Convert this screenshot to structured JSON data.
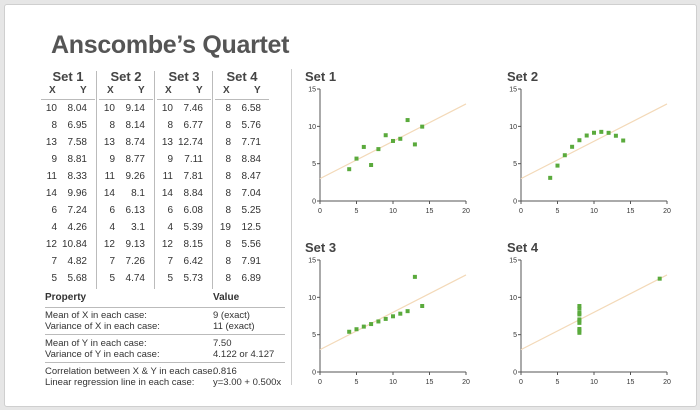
{
  "title": "Anscombe’s Quartet",
  "sets": [
    {
      "name": "Set 1",
      "xh": "X",
      "yh": "Y",
      "rows": [
        [
          "10",
          "8.04"
        ],
        [
          "8",
          "6.95"
        ],
        [
          "13",
          "7.58"
        ],
        [
          "9",
          "8.81"
        ],
        [
          "11",
          "8.33"
        ],
        [
          "14",
          "9.96"
        ],
        [
          "6",
          "7.24"
        ],
        [
          "4",
          "4.26"
        ],
        [
          "12",
          "10.84"
        ],
        [
          "7",
          "4.82"
        ],
        [
          "5",
          "5.68"
        ]
      ]
    },
    {
      "name": "Set 2",
      "xh": "X",
      "yh": "Y",
      "rows": [
        [
          "10",
          "9.14"
        ],
        [
          "8",
          "8.14"
        ],
        [
          "13",
          "8.74"
        ],
        [
          "9",
          "8.77"
        ],
        [
          "11",
          "9.26"
        ],
        [
          "14",
          "8.1"
        ],
        [
          "6",
          "6.13"
        ],
        [
          "4",
          "3.1"
        ],
        [
          "12",
          "9.13"
        ],
        [
          "7",
          "7.26"
        ],
        [
          "5",
          "4.74"
        ]
      ]
    },
    {
      "name": "Set 3",
      "xh": "X",
      "yh": "Y",
      "rows": [
        [
          "10",
          "7.46"
        ],
        [
          "8",
          "6.77"
        ],
        [
          "13",
          "12.74"
        ],
        [
          "9",
          "7.11"
        ],
        [
          "11",
          "7.81"
        ],
        [
          "14",
          "8.84"
        ],
        [
          "6",
          "6.08"
        ],
        [
          "4",
          "5.39"
        ],
        [
          "12",
          "8.15"
        ],
        [
          "7",
          "6.42"
        ],
        [
          "5",
          "5.73"
        ]
      ]
    },
    {
      "name": "Set 4",
      "xh": "X",
      "yh": "Y",
      "rows": [
        [
          "8",
          "6.58"
        ],
        [
          "8",
          "5.76"
        ],
        [
          "8",
          "7.71"
        ],
        [
          "8",
          "8.84"
        ],
        [
          "8",
          "8.47"
        ],
        [
          "8",
          "7.04"
        ],
        [
          "8",
          "5.25"
        ],
        [
          "19",
          "12.5"
        ],
        [
          "8",
          "5.56"
        ],
        [
          "8",
          "7.91"
        ],
        [
          "8",
          "6.89"
        ]
      ]
    }
  ],
  "properties": {
    "header_property": "Property",
    "header_value": "Value",
    "rows": [
      {
        "label": "Mean of X in each case:",
        "value": "9 (exact)"
      },
      {
        "label": "Variance of X in each case:",
        "value": "11 (exact)"
      },
      {
        "label": "Mean of Y in each case:",
        "value": "7.50"
      },
      {
        "label": "Variance of Y in each case:",
        "value": "4.122 or 4.127"
      },
      {
        "label": "Correlation between X & Y in each case:",
        "value": "0.816"
      },
      {
        "label": "Linear regression line in each case:",
        "value": "y=3.00 + 0.500x"
      }
    ]
  },
  "colors": {
    "points": "#5aaa3c",
    "regression": "#f3d9b8",
    "axis": "#555555",
    "title": "#555555"
  },
  "chart_data": [
    {
      "type": "scatter",
      "title": "Set 1",
      "xlim": [
        0,
        20
      ],
      "ylim": [
        0,
        15
      ],
      "xticks": [
        0,
        5,
        10,
        15,
        20
      ],
      "yticks": [
        0,
        5,
        10,
        15
      ],
      "x": [
        10,
        8,
        13,
        9,
        11,
        14,
        6,
        4,
        12,
        7,
        5
      ],
      "y": [
        8.04,
        6.95,
        7.58,
        8.81,
        8.33,
        9.96,
        7.24,
        4.26,
        10.84,
        4.82,
        5.68
      ],
      "regression": {
        "intercept": 3.0,
        "slope": 0.5
      }
    },
    {
      "type": "scatter",
      "title": "Set 2",
      "xlim": [
        0,
        20
      ],
      "ylim": [
        0,
        15
      ],
      "xticks": [
        0,
        5,
        10,
        15,
        20
      ],
      "yticks": [
        0,
        5,
        10,
        15
      ],
      "x": [
        10,
        8,
        13,
        9,
        11,
        14,
        6,
        4,
        12,
        7,
        5
      ],
      "y": [
        9.14,
        8.14,
        8.74,
        8.77,
        9.26,
        8.1,
        6.13,
        3.1,
        9.13,
        7.26,
        4.74
      ],
      "regression": {
        "intercept": 3.0,
        "slope": 0.5
      }
    },
    {
      "type": "scatter",
      "title": "Set 3",
      "xlim": [
        0,
        20
      ],
      "ylim": [
        0,
        15
      ],
      "xticks": [
        0,
        5,
        10,
        15,
        20
      ],
      "yticks": [
        0,
        5,
        10,
        15
      ],
      "x": [
        10,
        8,
        13,
        9,
        11,
        14,
        6,
        4,
        12,
        7,
        5
      ],
      "y": [
        7.46,
        6.77,
        12.74,
        7.11,
        7.81,
        8.84,
        6.08,
        5.39,
        8.15,
        6.42,
        5.73
      ],
      "regression": {
        "intercept": 3.0,
        "slope": 0.5
      }
    },
    {
      "type": "scatter",
      "title": "Set 4",
      "xlim": [
        0,
        20
      ],
      "ylim": [
        0,
        15
      ],
      "xticks": [
        0,
        5,
        10,
        15,
        20
      ],
      "yticks": [
        0,
        5,
        10,
        15
      ],
      "x": [
        8,
        8,
        8,
        8,
        8,
        8,
        8,
        19,
        8,
        8,
        8
      ],
      "y": [
        6.58,
        5.76,
        7.71,
        8.84,
        8.47,
        7.04,
        5.25,
        12.5,
        5.56,
        7.91,
        6.89
      ],
      "regression": {
        "intercept": 3.0,
        "slope": 0.5
      }
    }
  ]
}
